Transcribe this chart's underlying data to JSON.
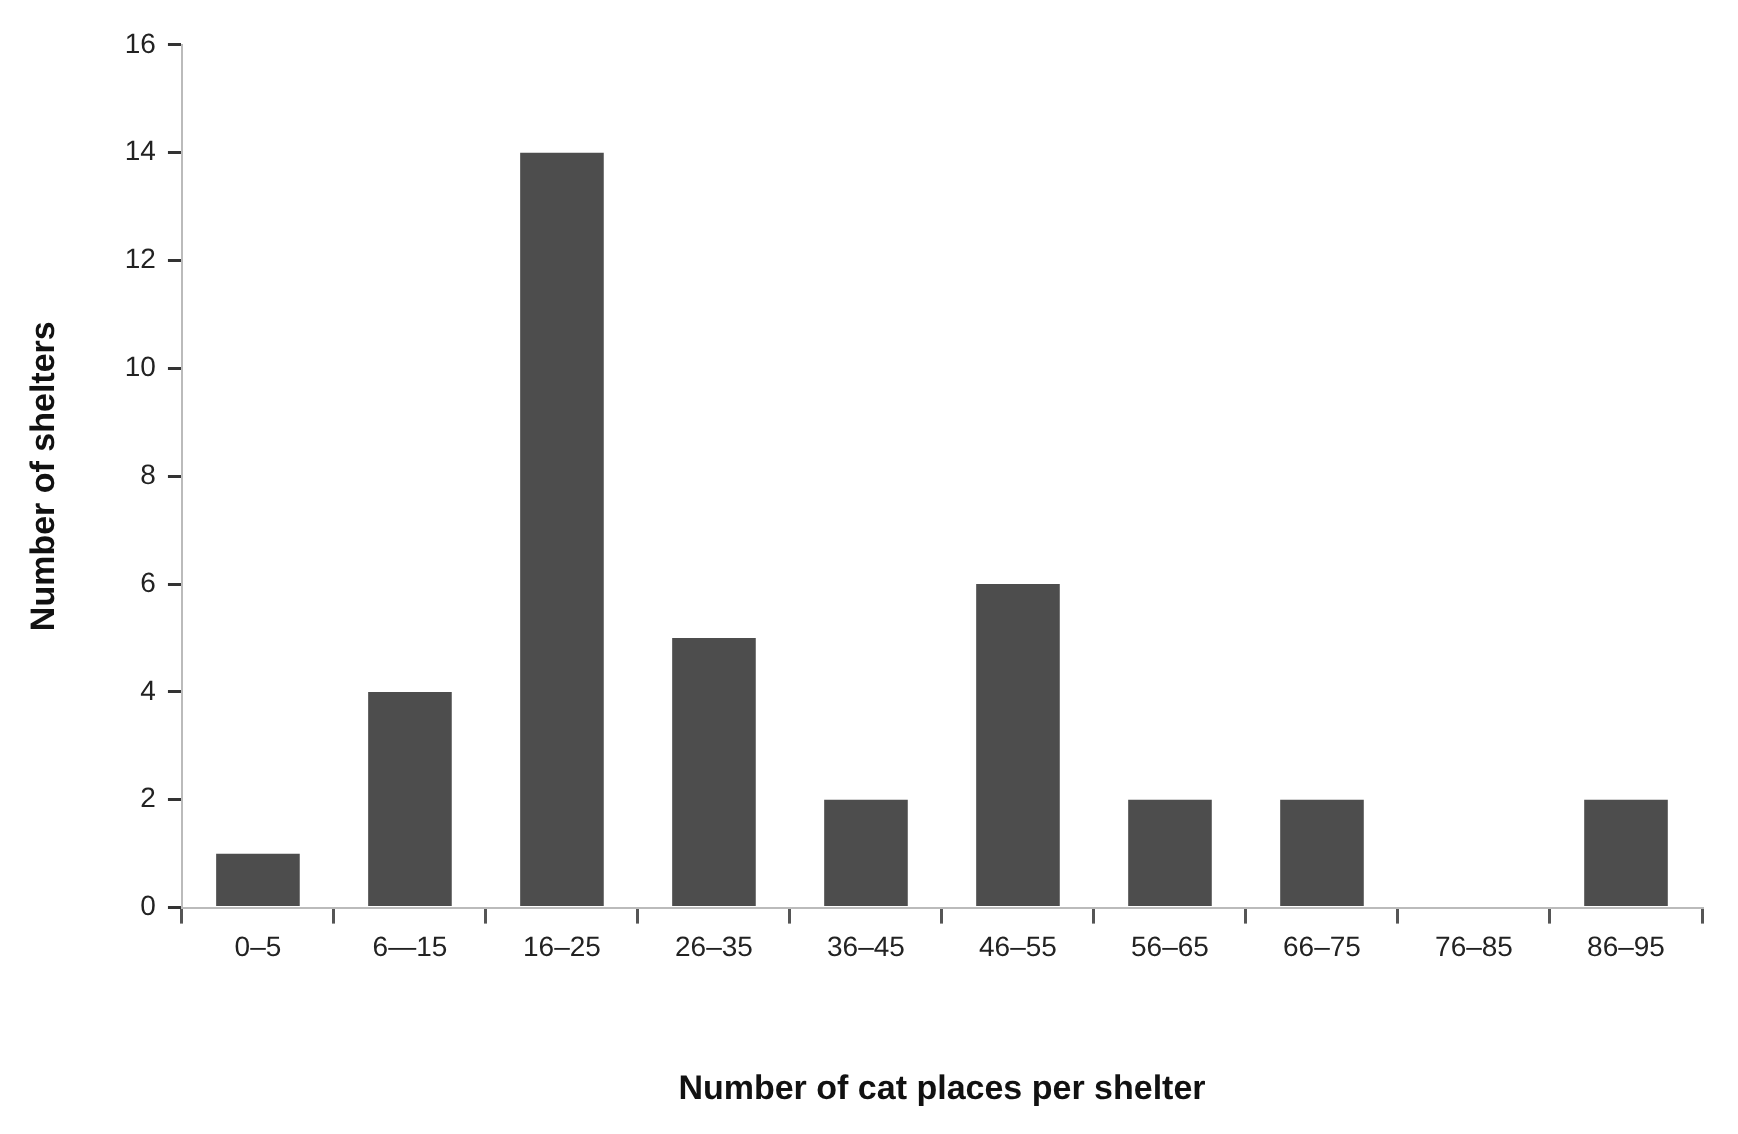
{
  "chart_data": {
    "type": "bar",
    "xlabel": "Number of cat places per shelter",
    "ylabel": "Number of shelters",
    "categories": [
      "0–5",
      "6—15",
      "16–25",
      "26–35",
      "36–45",
      "46–55",
      "56–65",
      "66–75",
      "76–85",
      "86–95"
    ],
    "values": [
      1,
      4,
      14,
      5,
      2,
      6,
      2,
      2,
      0,
      2
    ],
    "color": "#4d4d4d",
    "ylim": [
      0,
      16
    ],
    "yticks": [
      0,
      2,
      4,
      6,
      8,
      10,
      12,
      14,
      16
    ],
    "grid": false,
    "legend": false
  }
}
